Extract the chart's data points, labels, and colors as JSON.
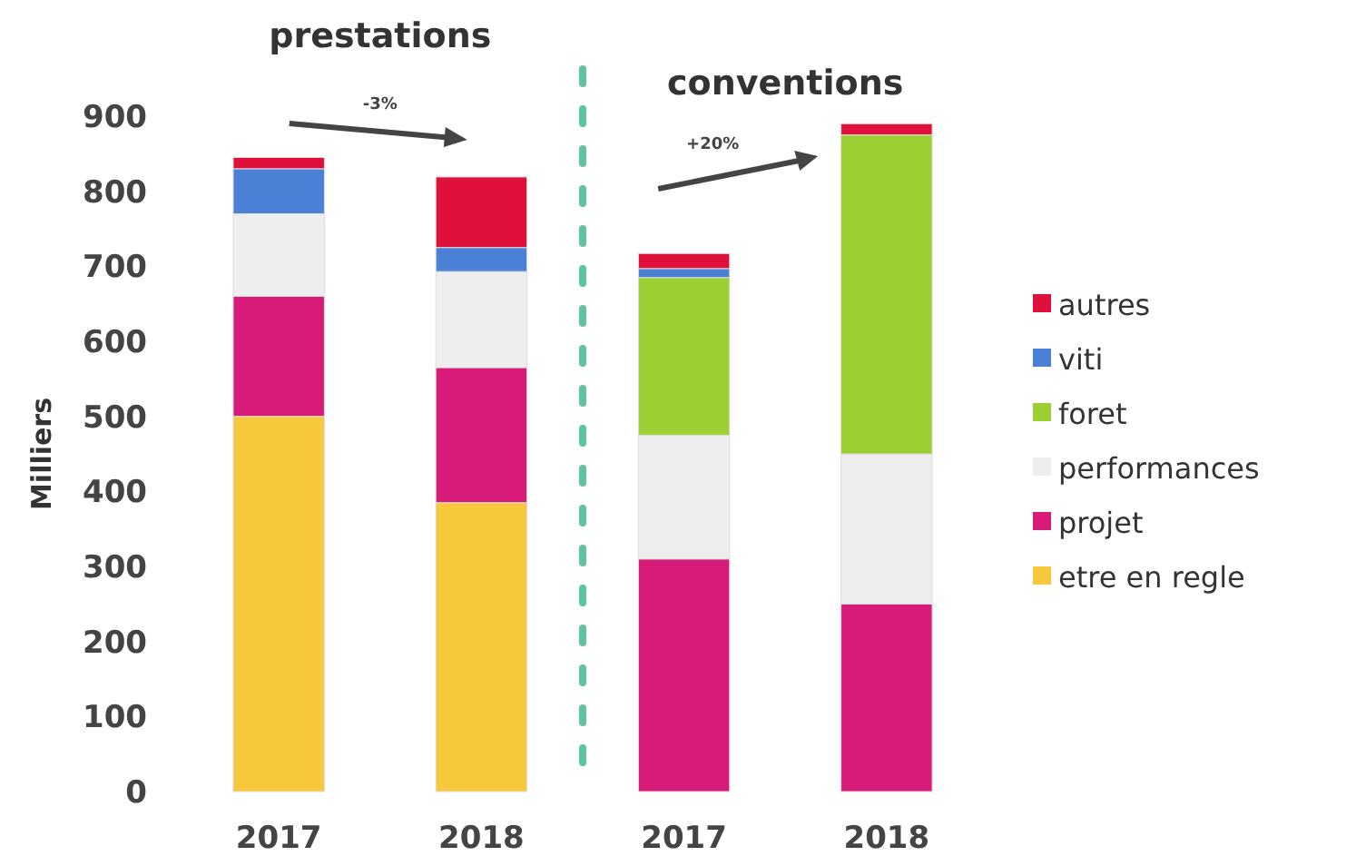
{
  "chart_data": {
    "type": "bar",
    "stacked": true,
    "ylabel": "Milliers",
    "categories": [
      "2017",
      "2018",
      "2017",
      "2018"
    ],
    "series": [
      {
        "name": "etre en regle",
        "color": "#f7c83c",
        "values": [
          500,
          385,
          null,
          null
        ]
      },
      {
        "name": "projet",
        "color": "#d81b78",
        "values": [
          160,
          180,
          310,
          250
        ]
      },
      {
        "name": "performances",
        "color": "#eeeeee",
        "values": [
          110,
          128,
          165,
          200
        ]
      },
      {
        "name": "foret",
        "color": "#9bcf32",
        "values": [
          null,
          null,
          210,
          425
        ]
      },
      {
        "name": "viti",
        "color": "#4a80d6",
        "values": [
          60,
          32,
          12,
          null
        ]
      },
      {
        "name": "autres",
        "color": "#e0103c",
        "values": [
          15,
          94,
          20,
          15
        ]
      }
    ],
    "ylim": [
      0,
      900
    ],
    "yticks": [
      0,
      100,
      200,
      300,
      400,
      500,
      600,
      700,
      800,
      900
    ],
    "grid": false,
    "legend": "right",
    "annotations": [
      "prestations",
      "-3%",
      "conventions",
      "+20%"
    ]
  }
}
